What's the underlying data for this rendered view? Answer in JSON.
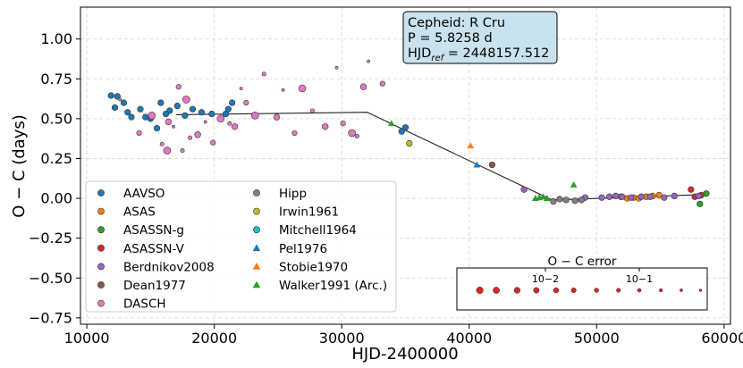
{
  "chart_data": {
    "type": "scatter",
    "title": "",
    "xlabel": "HJD-2400000",
    "ylabel": "O − C (days)",
    "xlim": [
      9500,
      60500
    ],
    "ylim": [
      -0.79,
      1.2
    ],
    "x_ticks": [
      10000,
      20000,
      30000,
      40000,
      50000,
      60000
    ],
    "x_tick_labels": [
      "10000",
      "20000",
      "30000",
      "40000",
      "50000",
      "60000"
    ],
    "y_ticks": [
      -0.75,
      -0.5,
      -0.25,
      0.0,
      0.25,
      0.5,
      0.75,
      1.0
    ],
    "y_tick_labels": [
      "−0.75",
      "−0.50",
      "−0.25",
      "0.00",
      "0.25",
      "0.50",
      "0.75",
      "1.00"
    ],
    "grid": true,
    "info_box": {
      "line1": "Cepheid: R Cru",
      "line2": "P = 5.8258 d",
      "line3_prefix": "HJD",
      "line3_sub": "ref",
      "line3_suffix": " = 2448157.512",
      "color": "#c9e3ee"
    },
    "fit_line": {
      "x": [
        17000,
        32000,
        46500,
        58800
      ],
      "y": [
        0.525,
        0.54,
        -0.01,
        0.025
      ]
    },
    "series": [
      {
        "name": "AAVSO",
        "color": "#1f77b4",
        "marker": "circle",
        "points": [
          [
            11900,
            0.645
          ],
          [
            12400,
            0.64
          ],
          [
            12200,
            0.57
          ],
          [
            12900,
            0.6
          ],
          [
            13200,
            0.54
          ],
          [
            13500,
            0.51
          ],
          [
            14200,
            0.56
          ],
          [
            14600,
            0.51
          ],
          [
            15000,
            0.5
          ],
          [
            15500,
            0.44
          ],
          [
            15800,
            0.6
          ],
          [
            16500,
            0.55
          ],
          [
            17100,
            0.58
          ],
          [
            17700,
            0.52
          ],
          [
            18300,
            0.56
          ],
          [
            19000,
            0.54
          ],
          [
            19800,
            0.53
          ],
          [
            20900,
            0.53
          ],
          [
            21100,
            0.56
          ],
          [
            21400,
            0.6
          ],
          [
            16200,
            0.53
          ],
          [
            34700,
            0.42
          ],
          [
            35000,
            0.445
          ]
        ]
      },
      {
        "name": "ASAS",
        "color": "#ff7f0e",
        "marker": "circle",
        "points": [
          [
            51900,
            0.01
          ],
          [
            52400,
            0.0
          ],
          [
            52900,
            0.005
          ],
          [
            53300,
            0.0
          ],
          [
            53900,
            0.01
          ],
          [
            54400,
            0.015
          ],
          [
            54900,
            0.02
          ]
        ]
      },
      {
        "name": "ASASSN-g",
        "color": "#2ca02c",
        "marker": "circle",
        "points": [
          [
            58100,
            -0.035
          ],
          [
            58600,
            0.03
          ]
        ]
      },
      {
        "name": "ASASSN-V",
        "color": "#d62728",
        "marker": "circle",
        "points": [
          [
            57400,
            0.055
          ],
          [
            57700,
            0.01
          ],
          [
            58200,
            0.02
          ]
        ]
      },
      {
        "name": "Berdnikov2008",
        "color": "#9467bd",
        "marker": "circle",
        "points": [
          [
            44300,
            0.055
          ],
          [
            49100,
            0.005
          ],
          [
            50400,
            0.005
          ],
          [
            51000,
            0.01
          ],
          [
            51500,
            0.015
          ],
          [
            52000,
            0.01
          ],
          [
            52700,
            0.005
          ],
          [
            53500,
            0.01
          ],
          [
            54200,
            0.01
          ],
          [
            55300,
            0.005
          ],
          [
            56100,
            0.015
          ],
          [
            58000,
            0.015
          ]
        ]
      },
      {
        "name": "Dean1977",
        "color": "#8c564b",
        "marker": "circle",
        "points": [
          [
            41800,
            0.21
          ]
        ]
      },
      {
        "name": "DASCH",
        "color": "#e377c2",
        "marker": "circle",
        "points": [
          [
            12600,
            0.62
          ],
          [
            14100,
            0.41
          ],
          [
            15100,
            0.52
          ],
          [
            15900,
            0.34
          ],
          [
            16400,
            0.48
          ],
          [
            16800,
            0.45
          ],
          [
            17200,
            0.7
          ],
          [
            17800,
            0.62
          ],
          [
            18100,
            0.38
          ],
          [
            18700,
            0.4
          ],
          [
            19300,
            0.48
          ],
          [
            19900,
            0.35
          ],
          [
            20500,
            0.5
          ],
          [
            21200,
            0.47
          ],
          [
            21600,
            0.45
          ],
          [
            22100,
            0.69
          ],
          [
            22500,
            0.6
          ],
          [
            23200,
            0.52
          ],
          [
            23900,
            0.78
          ],
          [
            24900,
            0.51
          ],
          [
            25400,
            0.68
          ],
          [
            26300,
            0.41
          ],
          [
            26900,
            0.69
          ],
          [
            27700,
            0.55
          ],
          [
            28700,
            0.45
          ],
          [
            29600,
            0.82
          ],
          [
            30100,
            0.47
          ],
          [
            30800,
            0.41
          ],
          [
            31200,
            0.39
          ],
          [
            31700,
            0.7
          ],
          [
            32100,
            0.86
          ],
          [
            33200,
            0.72
          ],
          [
            16300,
            0.3
          ],
          [
            17500,
            0.3
          ]
        ]
      },
      {
        "name": "Hipp",
        "color": "#7f7f7f",
        "marker": "circle",
        "points": [
          [
            46600,
            -0.02
          ],
          [
            47100,
            -0.005
          ],
          [
            47600,
            -0.01
          ],
          [
            48300,
            -0.015
          ],
          [
            48800,
            -0.01
          ]
        ]
      },
      {
        "name": "Irwin1961",
        "color": "#bcbd22",
        "marker": "circle",
        "points": [
          [
            35300,
            0.345
          ]
        ]
      },
      {
        "name": "Mitchell1964",
        "color": "#17becf",
        "marker": "circle",
        "points": []
      },
      {
        "name": "Pel1976",
        "color": "#1f77b4",
        "marker": "triangle",
        "points": [
          [
            40600,
            0.21
          ]
        ]
      },
      {
        "name": "Stobie1970",
        "color": "#ff7f0e",
        "marker": "triangle",
        "points": [
          [
            40100,
            0.33
          ]
        ]
      },
      {
        "name": "Walker1991 (Arc.)",
        "color": "#2ca02c",
        "marker": "triangle",
        "points": [
          [
            45200,
            0.0
          ],
          [
            45500,
            0.005
          ],
          [
            45800,
            0.01
          ],
          [
            46100,
            0.0
          ],
          [
            48200,
            0.085
          ],
          [
            33900,
            0.47
          ]
        ]
      }
    ],
    "error_scale": {
      "title": "O − C error",
      "tick_labels": [
        "10−2",
        "10−1"
      ],
      "marker_color": "#d62728",
      "values": [
        0.002,
        0.003,
        0.005,
        0.008,
        0.013,
        0.02,
        0.035,
        0.06,
        0.1,
        0.17,
        0.28,
        0.45
      ]
    }
  }
}
